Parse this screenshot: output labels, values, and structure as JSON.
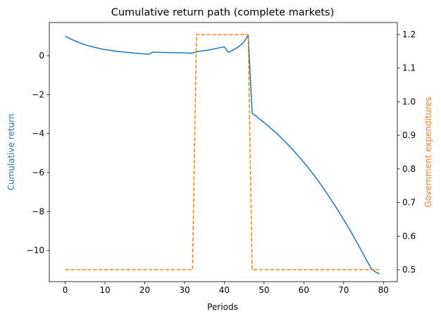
{
  "chart_data": {
    "type": "line",
    "title": "Cumulative return path (complete markets)",
    "xlabel": "Periods",
    "xlim": [
      -4,
      83.5
    ],
    "xticks": [
      0,
      10,
      20,
      30,
      40,
      50,
      60,
      70,
      80
    ],
    "y_left": {
      "label": "Cumulative return",
      "color": "#1f77b4",
      "ylim": [
        -11.6,
        1.7
      ],
      "ticks": [
        -10,
        -8,
        -6,
        -4,
        -2,
        0
      ],
      "tick_labels": [
        "−10",
        "−8",
        "−6",
        "−4",
        "−2",
        "0"
      ]
    },
    "y_right": {
      "label": "Government expenditures",
      "color": "#ff7f0e",
      "ylim": [
        0.4645,
        1.2355
      ],
      "ticks": [
        0.5,
        0.6,
        0.7,
        0.8,
        0.9,
        1.0,
        1.1,
        1.2
      ],
      "tick_labels": [
        "0.5",
        "0.6",
        "0.7",
        "0.8",
        "0.9",
        "1.0",
        "1.1",
        "1.2"
      ]
    },
    "series": [
      {
        "axis": "left",
        "style": "solid",
        "color": "#1f77b4",
        "x": [
          0,
          1,
          2,
          3,
          4,
          5,
          6,
          7,
          8,
          9,
          10,
          11,
          12,
          13,
          14,
          15,
          16,
          17,
          18,
          19,
          20,
          21,
          22,
          23,
          24,
          25,
          26,
          27,
          28,
          29,
          30,
          31,
          32,
          33,
          34,
          35,
          36,
          37,
          38,
          39,
          40,
          41,
          42,
          43,
          44,
          45,
          46,
          47,
          48,
          49,
          50,
          51,
          52,
          53,
          54,
          55,
          56,
          57,
          58,
          59,
          60,
          61,
          62,
          63,
          64,
          65,
          66,
          67,
          68,
          69,
          70,
          71,
          72,
          73,
          74,
          75,
          76,
          77,
          78,
          79
        ],
        "y": [
          1.0,
          0.9,
          0.8,
          0.71,
          0.63,
          0.56,
          0.5,
          0.45,
          0.4,
          0.35,
          0.31,
          0.28,
          0.25,
          0.22,
          0.2,
          0.18,
          0.16,
          0.14,
          0.12,
          0.1,
          0.09,
          0.07,
          0.18,
          0.17,
          0.17,
          0.16,
          0.16,
          0.15,
          0.15,
          0.14,
          0.14,
          0.13,
          0.13,
          0.2,
          0.23,
          0.26,
          0.29,
          0.33,
          0.37,
          0.41,
          0.45,
          0.18,
          0.27,
          0.38,
          0.52,
          0.72,
          1.05,
          -2.95,
          -3.1,
          -3.27,
          -3.43,
          -3.6,
          -3.78,
          -3.96,
          -4.15,
          -4.35,
          -4.56,
          -4.78,
          -5.01,
          -5.24,
          -5.48,
          -5.73,
          -5.99,
          -6.26,
          -6.54,
          -6.83,
          -7.13,
          -7.44,
          -7.75,
          -8.08,
          -8.41,
          -8.75,
          -9.1,
          -9.46,
          -9.83,
          -10.2,
          -10.58,
          -10.95,
          -11.1,
          -11.2
        ]
      },
      {
        "axis": "right",
        "style": "dashed",
        "color": "#ff7f0e",
        "x": [
          0,
          32,
          33,
          46,
          47,
          79
        ],
        "y": [
          0.5,
          0.5,
          1.2,
          1.2,
          0.5,
          0.5
        ]
      }
    ]
  }
}
